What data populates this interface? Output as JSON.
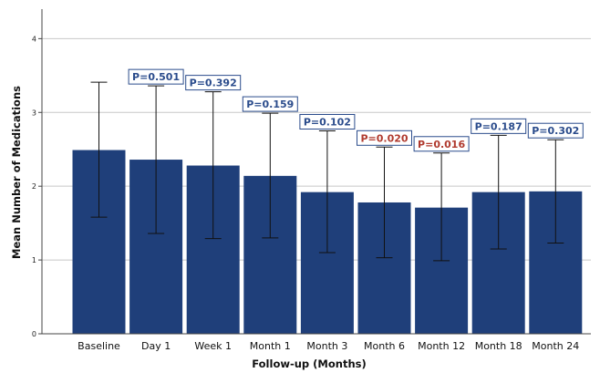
{
  "chart_data": {
    "type": "bar",
    "title": "",
    "xlabel": "Follow-up (Months)",
    "ylabel": "Mean Number of Medications",
    "ylim": [
      0,
      4.4
    ],
    "yticks": [
      "0",
      "1",
      "2",
      "3",
      "4"
    ],
    "grid": "horizontal",
    "categories": [
      "Baseline",
      "Day 1",
      "Week 1",
      "Month 1",
      "Month 3",
      "Month 6",
      "Month 12",
      "Month 18",
      "Month 24"
    ],
    "values": [
      2.49,
      2.36,
      2.28,
      2.14,
      1.92,
      1.78,
      1.71,
      1.92,
      1.93
    ],
    "error_low": [
      1.58,
      1.36,
      1.29,
      1.3,
      1.1,
      1.03,
      0.99,
      1.15,
      1.23
    ],
    "error_high": [
      3.41,
      3.36,
      3.28,
      2.99,
      2.75,
      2.53,
      2.45,
      2.69,
      2.63
    ],
    "p_values": [
      "",
      "P=0.501",
      "P=0.392",
      "P=0.159",
      "P=0.102",
      "P=0.020",
      "P=0.016",
      "P=0.187",
      "P=0.302"
    ],
    "p_significant": [
      false,
      false,
      false,
      false,
      false,
      true,
      true,
      false,
      false
    ],
    "bar_color": "#1f3f7a",
    "p_color_normal": "#2b4c8c",
    "p_color_significant": "#b03a2e",
    "grid_color": "#c8c8c8"
  }
}
